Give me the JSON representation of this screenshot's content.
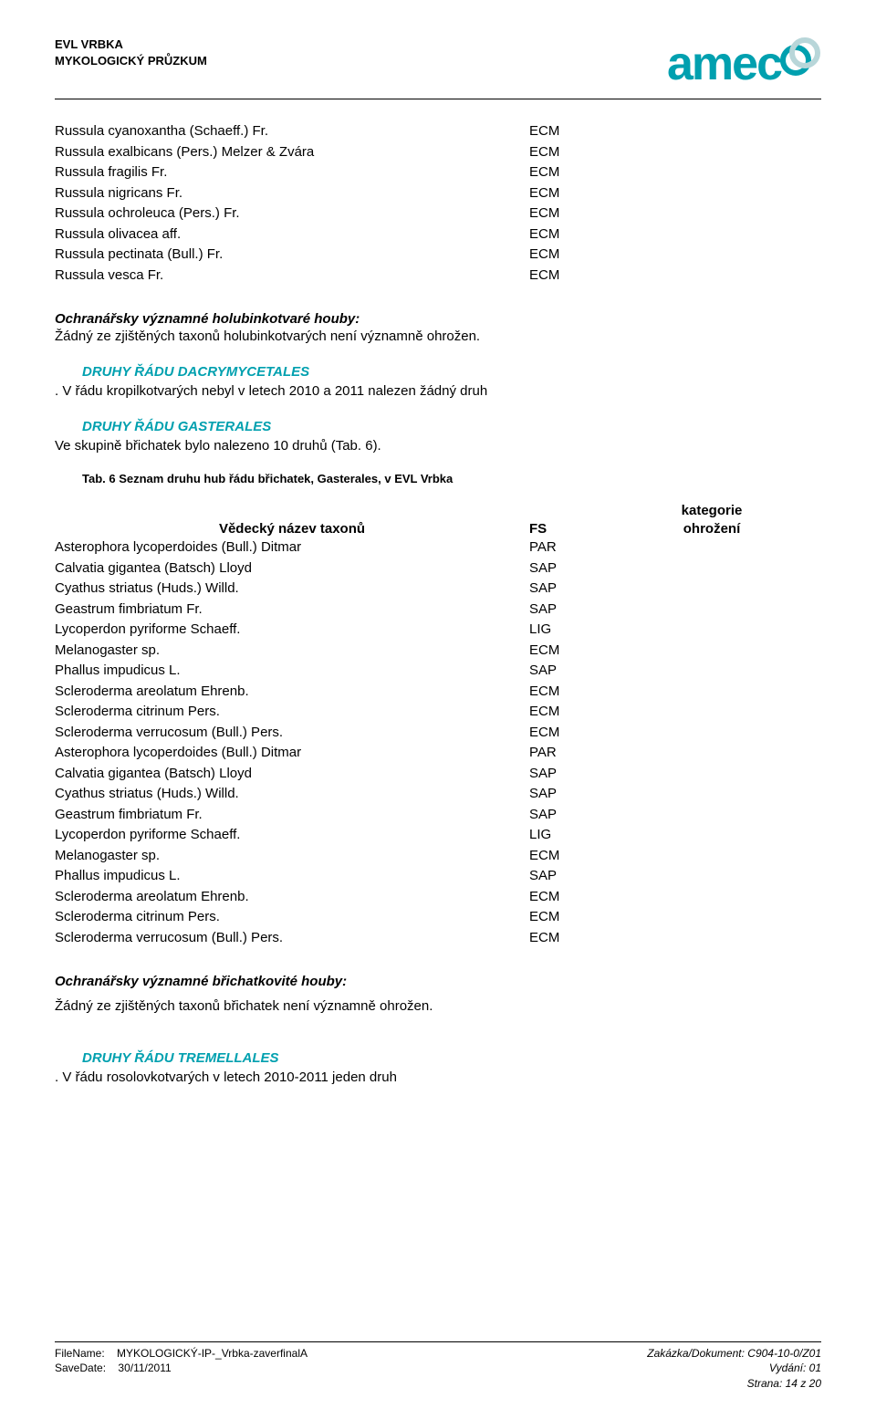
{
  "header": {
    "title_line1": "EVL VRBKA",
    "title_line2": "MYKOLOGICKÝ PRŮZKUM",
    "logo_text": "amec",
    "logo_color": "#00a0af"
  },
  "top_species": [
    {
      "name": "Russula cyanoxantha (Schaeff.) Fr.",
      "fs": "ECM"
    },
    {
      "name": "Russula exalbicans (Pers.) Melzer & Zvára",
      "fs": "ECM"
    },
    {
      "name": "Russula fragilis Fr.",
      "fs": "ECM"
    },
    {
      "name": "Russula nigricans Fr.",
      "fs": "ECM"
    },
    {
      "name": "Russula ochroleuca (Pers.) Fr.",
      "fs": "ECM"
    },
    {
      "name": "Russula olivacea aff.",
      "fs": "ECM"
    },
    {
      "name": "Russula pectinata (Bull.) Fr.",
      "fs": "ECM"
    },
    {
      "name": "Russula vesca Fr.",
      "fs": "ECM"
    }
  ],
  "sec1": {
    "title": "Ochranářsky významné holubinkotvaré  houby:",
    "text": "Žádný ze zjištěných taxonů holubinkotvarých není významně ohrožen."
  },
  "dacry": {
    "heading": "DRUHY ŘÁDU DACRYMYCETALES",
    "text": ". V řádu kropilkotvarých nebyl v letech 2010 a 2011 nalezen žádný druh"
  },
  "gaster": {
    "heading": "DRUHY ŘÁDU GASTERALES",
    "text": "Ve skupině břichatek bylo nalezeno 10 druhů (Tab. 6).",
    "caption": "Tab. 6 Seznam druhu hub řádu břichatek, Gasterales, v EVL Vrbka"
  },
  "table_headers": {
    "name": "Vědecký název taxonů",
    "fs": "FS",
    "cat_line1": "kategorie",
    "cat_line2": "ohrožení"
  },
  "table_rows": [
    {
      "name": "Asterophora lycoperdoides (Bull.) Ditmar",
      "fs": "PAR"
    },
    {
      "name": "Calvatia gigantea (Batsch) Lloyd",
      "fs": "SAP"
    },
    {
      "name": "Cyathus striatus (Huds.) Willd.",
      "fs": "SAP"
    },
    {
      "name": "Geastrum fimbriatum Fr.",
      "fs": "SAP"
    },
    {
      "name": "Lycoperdon pyriforme Schaeff.",
      "fs": "LIG"
    },
    {
      "name": "Melanogaster sp.",
      "fs": "ECM"
    },
    {
      "name": "Phallus impudicus L.",
      "fs": "SAP"
    },
    {
      "name": "Scleroderma areolatum Ehrenb.",
      "fs": "ECM"
    },
    {
      "name": "Scleroderma citrinum Pers.",
      "fs": "ECM"
    },
    {
      "name": "Scleroderma verrucosum (Bull.) Pers.",
      "fs": "ECM"
    },
    {
      "name": "Asterophora lycoperdoides (Bull.) Ditmar",
      "fs": "PAR"
    },
    {
      "name": "Calvatia gigantea (Batsch) Lloyd",
      "fs": "SAP"
    },
    {
      "name": "Cyathus striatus (Huds.) Willd.",
      "fs": "SAP"
    },
    {
      "name": "Geastrum fimbriatum Fr.",
      "fs": "SAP"
    },
    {
      "name": "Lycoperdon pyriforme Schaeff.",
      "fs": "LIG"
    },
    {
      "name": "Melanogaster sp.",
      "fs": "ECM"
    },
    {
      "name": "Phallus impudicus L.",
      "fs": "SAP"
    },
    {
      "name": "Scleroderma areolatum Ehrenb.",
      "fs": "ECM"
    },
    {
      "name": "Scleroderma citrinum Pers.",
      "fs": "ECM"
    },
    {
      "name": "Scleroderma verrucosum (Bull.) Pers.",
      "fs": "ECM"
    }
  ],
  "sec2": {
    "title": "Ochranářsky významné břichatkovité houby:",
    "text": "Žádný ze zjištěných taxonů břichatek není významně ohrožen."
  },
  "tremel": {
    "heading": "DRUHY ŘÁDU TREMELLALES",
    "text": ". V řádu rosolovkotvarých v letech 2010-2011 jeden druh"
  },
  "footer": {
    "left_line1_label": "FileName:",
    "left_line1_value": "MYKOLOGICKÝ-IP-_Vrbka-zaverfinalA",
    "left_line2_label": "SaveDate:",
    "left_line2_value": "30/11/2011",
    "right_line1": "Zakázka/Dokument: C904-10-0/Z01",
    "right_line2": "Vydání: 01",
    "right_line3": "Strana: 14 z 20"
  }
}
